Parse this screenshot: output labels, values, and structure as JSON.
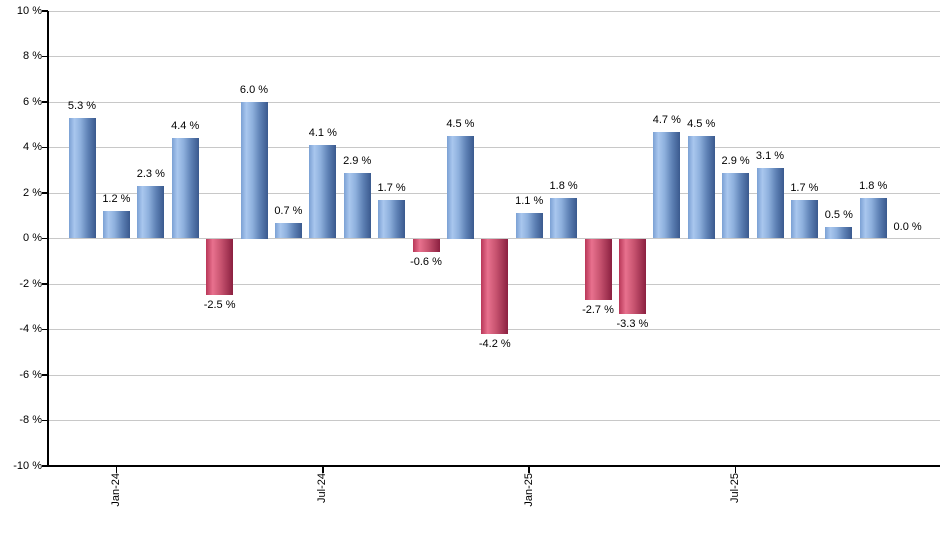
{
  "chart_data": {
    "type": "bar",
    "title": "",
    "xlabel": "",
    "ylabel": "",
    "unit": "%",
    "ylim": [
      -10,
      10
    ],
    "grid": true,
    "legend": "none",
    "y_ticks": [
      {
        "value": 10,
        "label": "10 %"
      },
      {
        "value": 8,
        "label": "8 %"
      },
      {
        "value": 6,
        "label": "6 %"
      },
      {
        "value": 4,
        "label": "4 %"
      },
      {
        "value": 2,
        "label": "2 %"
      },
      {
        "value": 0,
        "label": "0 %"
      },
      {
        "value": -2,
        "label": "-2 %"
      },
      {
        "value": -4,
        "label": "-4 %"
      },
      {
        "value": -6,
        "label": "-6 %"
      },
      {
        "value": -8,
        "label": "-8 %"
      },
      {
        "value": -10,
        "label": "-10 %"
      }
    ],
    "x_ticks": [
      {
        "label": "Jan-24",
        "bar_index": 1
      },
      {
        "label": "Jul-24",
        "bar_index": 7
      },
      {
        "label": "Jan-25",
        "bar_index": 13
      },
      {
        "label": "Jul-25",
        "bar_index": 19
      }
    ],
    "bars": [
      {
        "value": 5.3,
        "label": "5.3 %"
      },
      {
        "value": 1.2,
        "label": "1.2 %"
      },
      {
        "value": 2.3,
        "label": "2.3 %"
      },
      {
        "value": 4.4,
        "label": "4.4 %"
      },
      {
        "value": -2.5,
        "label": "-2.5 %"
      },
      {
        "value": 6.0,
        "label": "6.0 %"
      },
      {
        "value": 0.7,
        "label": "0.7 %"
      },
      {
        "value": 4.1,
        "label": "4.1 %"
      },
      {
        "value": 2.9,
        "label": "2.9 %"
      },
      {
        "value": 1.7,
        "label": "1.7 %"
      },
      {
        "value": -0.6,
        "label": "-0.6 %"
      },
      {
        "value": 4.5,
        "label": "4.5 %"
      },
      {
        "value": -4.2,
        "label": "-4.2 %"
      },
      {
        "value": 1.1,
        "label": "1.1 %"
      },
      {
        "value": 1.8,
        "label": "1.8 %"
      },
      {
        "value": -2.7,
        "label": "-2.7 %"
      },
      {
        "value": -3.3,
        "label": "-3.3 %"
      },
      {
        "value": 4.7,
        "label": "4.7 %"
      },
      {
        "value": 4.5,
        "label": "4.5 %"
      },
      {
        "value": 2.9,
        "label": "2.9 %"
      },
      {
        "value": 3.1,
        "label": "3.1 %"
      },
      {
        "value": 1.7,
        "label": "1.7 %"
      },
      {
        "value": 0.5,
        "label": "0.5 %"
      },
      {
        "value": 1.8,
        "label": "1.8 %"
      },
      {
        "value": 0.0,
        "label": "0.0 %"
      }
    ],
    "colors": {
      "positive_gradient": [
        {
          "pos": 0,
          "color": "#7BA0D4"
        },
        {
          "pos": 20,
          "color": "#A9C7EE"
        },
        {
          "pos": 42,
          "color": "#8FB1DE"
        },
        {
          "pos": 72,
          "color": "#5C7FB3"
        },
        {
          "pos": 100,
          "color": "#3A598E"
        }
      ],
      "negative_gradient": [
        {
          "pos": 0,
          "color": "#B83758"
        },
        {
          "pos": 25,
          "color": "#E8718E"
        },
        {
          "pos": 55,
          "color": "#C85470"
        },
        {
          "pos": 100,
          "color": "#8B2040"
        }
      ],
      "gridline": "#C8C8C8",
      "axis": "#000000",
      "text": "#000000",
      "background": "#FFFFFF"
    }
  }
}
